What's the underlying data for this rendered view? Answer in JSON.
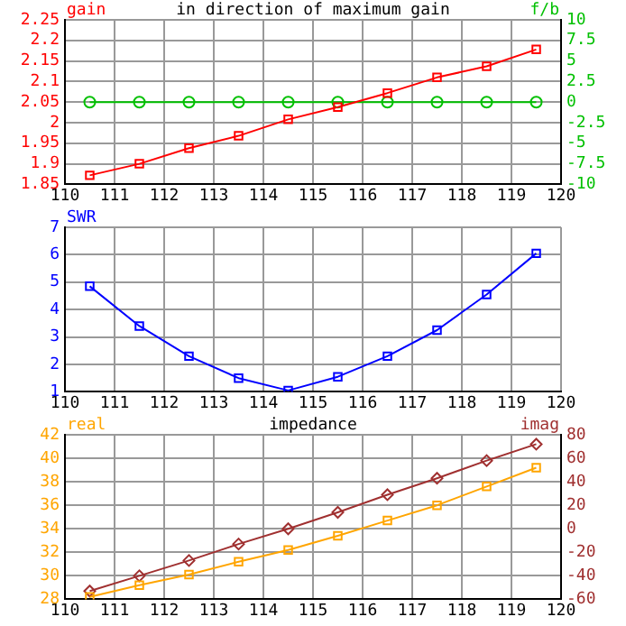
{
  "chart_data": [
    {
      "type": "line",
      "title": "in direction of maximum gain",
      "ylabel": "gain",
      "y2label": "f/b",
      "x": [
        110.5,
        111.5,
        112.5,
        113.5,
        114.5,
        115.5,
        116.5,
        117.5,
        118.5,
        119.5
      ],
      "xlim": [
        110,
        120
      ],
      "xticks": [
        110,
        111,
        112,
        113,
        114,
        115,
        116,
        117,
        118,
        119,
        120
      ],
      "ylim": [
        1.85,
        2.25
      ],
      "yticks": [
        1.85,
        1.9,
        1.95,
        2,
        2.05,
        2.1,
        2.15,
        2.2,
        2.25
      ],
      "y2lim": [
        -10,
        10
      ],
      "y2ticks": [
        -10,
        -7.5,
        -5,
        -2.5,
        0,
        2.5,
        5,
        7.5,
        10
      ],
      "grid": true,
      "legend": false,
      "line_style": "solid",
      "series": [
        {
          "color": "#ff0000",
          "marker": "square",
          "values": [
            1.872,
            1.9,
            1.938,
            1.968,
            2.008,
            2.038,
            2.072,
            2.11,
            2.137,
            2.178
          ]
        },
        {
          "color": "#00c000",
          "marker": "circle",
          "axis": "y2",
          "values": [
            0,
            0,
            0,
            0,
            0,
            0,
            0,
            0,
            0,
            0
          ]
        }
      ]
    },
    {
      "type": "line",
      "ylabel": "SWR",
      "x": [
        110.5,
        111.5,
        112.5,
        113.5,
        114.5,
        115.5,
        116.5,
        117.5,
        118.5,
        119.5
      ],
      "xlim": [
        110,
        120
      ],
      "xticks": [
        110,
        111,
        112,
        113,
        114,
        115,
        116,
        117,
        118,
        119,
        120
      ],
      "ylim": [
        1,
        7
      ],
      "yticks": [
        1,
        2,
        3,
        4,
        5,
        6,
        7
      ],
      "grid": true,
      "legend": false,
      "line_style": "solid",
      "series": [
        {
          "color": "#0000ff",
          "marker": "square",
          "values": [
            4.85,
            3.4,
            2.3,
            1.5,
            1.05,
            1.55,
            2.3,
            3.25,
            4.55,
            6.05
          ]
        }
      ]
    },
    {
      "type": "line",
      "title": "impedance",
      "ylabel": "real",
      "y2label": "imag",
      "x": [
        110.5,
        111.5,
        112.5,
        113.5,
        114.5,
        115.5,
        116.5,
        117.5,
        118.5,
        119.5
      ],
      "xlim": [
        110,
        120
      ],
      "xticks": [
        110,
        111,
        112,
        113,
        114,
        115,
        116,
        117,
        118,
        119,
        120
      ],
      "ylim": [
        28,
        42
      ],
      "yticks": [
        28,
        30,
        32,
        34,
        36,
        38,
        40,
        42
      ],
      "y2lim": [
        -60,
        80
      ],
      "y2ticks": [
        -60,
        -40,
        -20,
        0,
        20,
        40,
        60,
        80
      ],
      "grid": true,
      "legend": false,
      "line_style": "solid",
      "series": [
        {
          "color": "#ffa500",
          "marker": "square",
          "values": [
            28.2,
            29.2,
            30.1,
            31.2,
            32.2,
            33.4,
            34.7,
            36,
            37.6,
            39.2
          ]
        },
        {
          "color": "#a03030",
          "marker": "diamond",
          "axis": "y2",
          "values": [
            -53,
            -40,
            -27,
            -13,
            0,
            14,
            29,
            43,
            58,
            72
          ]
        }
      ]
    }
  ]
}
